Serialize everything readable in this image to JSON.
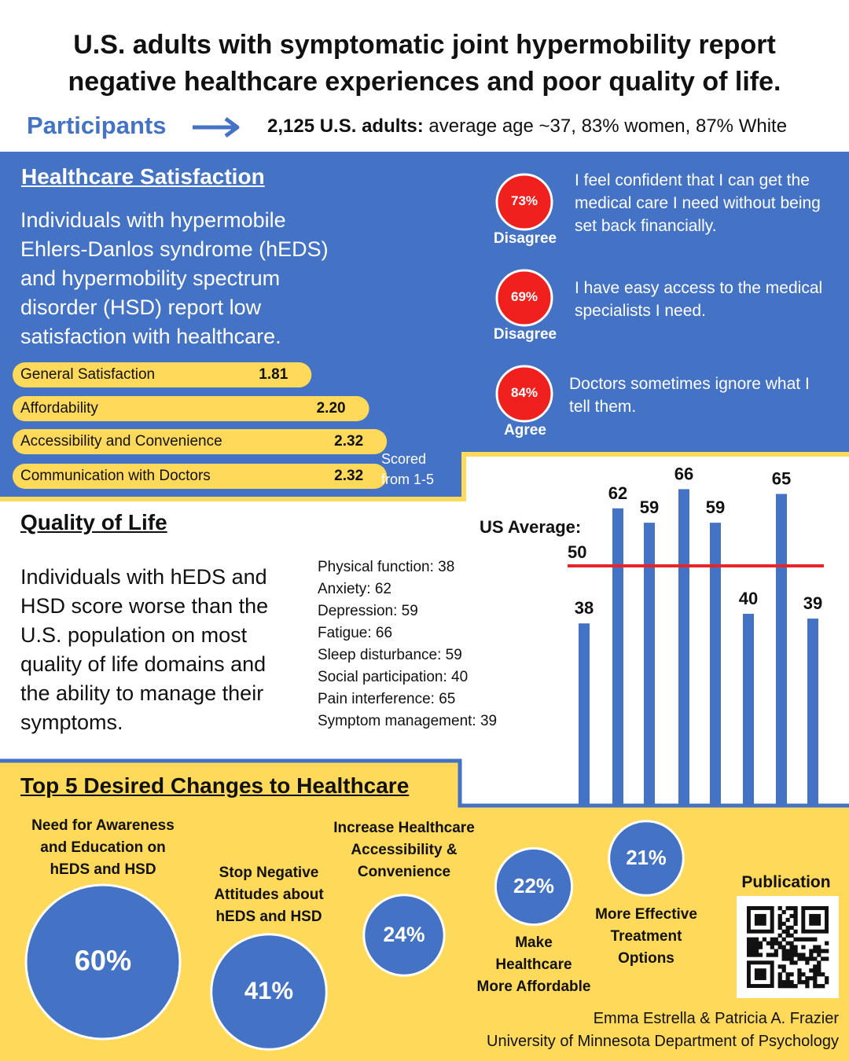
{
  "header": {
    "title": "U.S. adults with symptomatic joint hypermobility report negative healthcare experiences and poor quality of life.",
    "participants_label": "Participants",
    "participants_bold": "2,125 U.S. adults:",
    "participants_text": "average age ~37, 83% women, 87% White"
  },
  "healthcare_satisfaction": {
    "heading": "Healthcare Satisfaction",
    "description": "Individuals with hypermobile Ehlers-Danlos syndrome (hEDS) and hypermobility spectrum disorder (HSD) report low satisfaction with healthcare.",
    "scores": {
      "categories": [
        "General Satisfaction",
        "Affordability",
        "Accessibility and Convenience",
        "Communication with Doctors"
      ],
      "values": [
        1.81,
        2.2,
        2.32,
        2.32
      ],
      "value_labels": [
        "1.81",
        "2.20",
        "2.32",
        "2.32"
      ]
    },
    "scale_note": [
      "Scored",
      "from 1-5"
    ],
    "statements": [
      {
        "percent": "73%",
        "response": "Disagree",
        "text": "I feel confident that I can get the medical care I need without being set back financially."
      },
      {
        "percent": "69%",
        "response": "Disagree",
        "text": "I have easy access to the medical specialists I need."
      },
      {
        "percent": "84%",
        "response": "Agree",
        "text": "Doctors sometimes ignore what I tell them."
      }
    ]
  },
  "quality_of_life": {
    "heading": "Quality of Life",
    "description": "Individuals with hEDS and HSD score worse than the U.S. population on most quality of life domains and the ability to manage their symptoms.",
    "domains": [
      "Physical function: 38",
      "Anxiety: 62",
      "Depression: 59",
      "Fatigue: 66",
      "Sleep disturbance: 59",
      "Social participation: 40",
      "Pain interference: 65",
      "Symptom management: 39"
    ],
    "chart": {
      "type": "bar",
      "values": [
        38,
        62,
        59,
        66,
        59,
        40,
        65,
        39
      ],
      "color": "#4472c4",
      "reference_label": "US Average:",
      "reference_value": 50,
      "reference_color": "#e8262a"
    }
  },
  "desired_changes": {
    "heading": "Top 5 Desired Changes to Healthcare",
    "labels": [
      [
        "Need for Awareness",
        "and Education on",
        "hEDS and HSD"
      ],
      [
        "Stop Negative",
        "Attitudes about",
        "hEDS and HSD"
      ],
      [
        "Increase Healthcare",
        "Accessibility &",
        "Convenience"
      ],
      [
        "Make",
        "Healthcare",
        "More Affordable"
      ],
      [
        "More Effective",
        "Treatment",
        "Options"
      ]
    ],
    "values": [
      60,
      41,
      24,
      22,
      21
    ],
    "value_labels": [
      "60%",
      "41%",
      "24%",
      "22%",
      "21%"
    ]
  },
  "publication": {
    "label": "Publication"
  },
  "credits": [
    "Emma Estrella & Patricia A. Frazier",
    "University of Minnesota Department of Psychology"
  ]
}
